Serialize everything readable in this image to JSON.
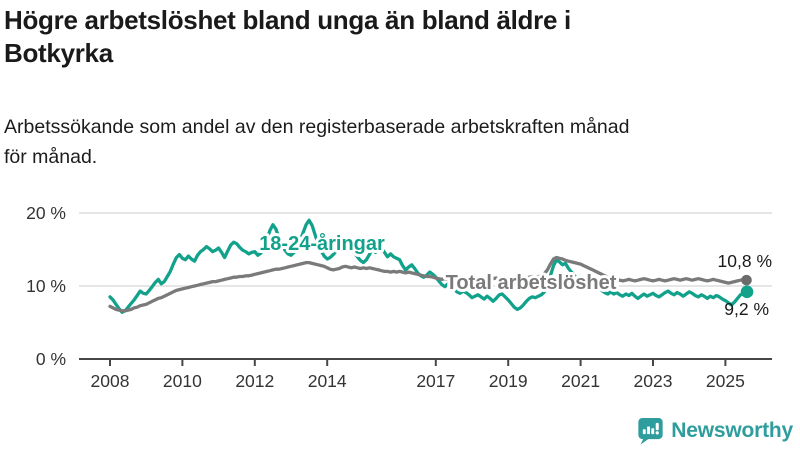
{
  "header": {
    "title_lines": [
      "Högre arbetslöshet bland unga än bland äldre i",
      "Botkyrka"
    ],
    "subtitle_lines": [
      "Arbetssökande som andel av den registerbaserade arbetskraften månad",
      "för månad."
    ]
  },
  "colors": {
    "youth_line": "#12a28b",
    "total_line": "#7a7a7b",
    "youth_dot": "#12a28b",
    "total_dot": "#6b6b6b",
    "grid": "#d8d8d8",
    "axis": "#474747",
    "tick_text": "#343434",
    "brand": "#2f9d9d"
  },
  "chart_data": {
    "type": "line",
    "title": "Högre arbetslöshet bland unga än bland äldre i Botkyrka",
    "subtitle": "Arbetssökande som andel av den registerbaserade arbetskraften månad för månad.",
    "unit": "%",
    "frequency": "monthly",
    "x_start": "2008-01",
    "x_end": "2025-08",
    "x_tick_years": [
      2008,
      2010,
      2012,
      2014,
      2017,
      2019,
      2021,
      2023,
      2025
    ],
    "y_ticks": [
      0,
      10,
      20
    ],
    "y_tick_labels": [
      "0 %",
      "10 %",
      "20 %"
    ],
    "ylim": [
      0,
      22
    ],
    "grid": true,
    "legend_position": "inline-labels",
    "series": [
      {
        "name": "18-24-åringar",
        "end_label": "9,2 %",
        "end_value": 9.2,
        "values": [
          8.5,
          8.1,
          7.5,
          6.9,
          6.4,
          6.6,
          7.1,
          7.6,
          8.1,
          8.7,
          9.3,
          9.0,
          8.9,
          9.4,
          9.9,
          10.5,
          10.9,
          10.3,
          10.6,
          11.3,
          12.0,
          13.0,
          13.9,
          14.3,
          13.8,
          13.6,
          14.1,
          13.7,
          13.4,
          14.2,
          14.7,
          15.0,
          15.4,
          15.1,
          14.7,
          14.9,
          15.2,
          14.6,
          13.9,
          14.8,
          15.6,
          16.0,
          15.8,
          15.3,
          14.9,
          14.7,
          14.4,
          14.6,
          14.7,
          14.2,
          14.5,
          15.3,
          16.4,
          17.6,
          18.4,
          17.8,
          16.6,
          15.6,
          14.9,
          14.4,
          14.2,
          14.6,
          15.2,
          16.2,
          17.3,
          18.4,
          19.0,
          18.3,
          17.0,
          15.8,
          14.8,
          14.1,
          13.7,
          13.9,
          14.3,
          14.8,
          15.4,
          16.0,
          16.4,
          15.9,
          15.1,
          14.5,
          14.0,
          13.5,
          13.2,
          13.6,
          14.3,
          15.1,
          14.6,
          15.0,
          15.2,
          14.6,
          14.0,
          14.4,
          14.0,
          13.8,
          13.6,
          12.8,
          12.2,
          12.6,
          12.9,
          12.4,
          11.8,
          11.4,
          11.2,
          11.5,
          11.9,
          11.6,
          11.2,
          10.7,
          10.2,
          9.9,
          10.3,
          10.0,
          9.6,
          9.2,
          9.0,
          9.3,
          9.1,
          8.8,
          8.4,
          8.6,
          8.8,
          8.5,
          8.2,
          8.6,
          8.3,
          7.9,
          8.3,
          8.8,
          8.9,
          8.5,
          8.1,
          7.6,
          7.1,
          6.8,
          7.0,
          7.4,
          7.9,
          8.3,
          8.5,
          8.4,
          8.6,
          8.8,
          9.2,
          10.1,
          11.4,
          12.8,
          13.6,
          13.3,
          12.9,
          13.1,
          12.4,
          11.9,
          11.4,
          10.9,
          10.5,
          10.2,
          9.9,
          10.1,
          9.8,
          9.6,
          9.8,
          9.4,
          9.1,
          8.9,
          9.2,
          8.9,
          9.1,
          8.8,
          8.6,
          8.9,
          8.7,
          9.0,
          8.6,
          8.3,
          8.6,
          8.9,
          8.6,
          8.8,
          9.0,
          8.7,
          8.5,
          8.8,
          9.1,
          9.3,
          9.0,
          8.8,
          9.1,
          8.9,
          8.6,
          8.9,
          9.2,
          9.0,
          8.7,
          8.5,
          8.8,
          8.6,
          8.3,
          8.6,
          8.4,
          8.7,
          8.5,
          8.2,
          8.0,
          7.7,
          7.4,
          7.8,
          8.3,
          8.8,
          9.0,
          9.2
        ]
      },
      {
        "name": "Total arbetslöshet",
        "end_label": "10,8 %",
        "end_value": 10.8,
        "values": [
          7.2,
          7.0,
          6.8,
          6.7,
          6.6,
          6.6,
          6.7,
          6.8,
          7.0,
          7.1,
          7.3,
          7.4,
          7.5,
          7.7,
          7.9,
          8.1,
          8.3,
          8.4,
          8.6,
          8.8,
          9.0,
          9.2,
          9.4,
          9.5,
          9.6,
          9.7,
          9.8,
          9.9,
          10.0,
          10.1,
          10.2,
          10.3,
          10.4,
          10.5,
          10.6,
          10.6,
          10.7,
          10.8,
          10.9,
          11.0,
          11.1,
          11.2,
          11.2,
          11.3,
          11.3,
          11.4,
          11.4,
          11.5,
          11.6,
          11.7,
          11.8,
          11.9,
          12.0,
          12.1,
          12.2,
          12.3,
          12.3,
          12.4,
          12.5,
          12.6,
          12.7,
          12.8,
          12.9,
          13.0,
          13.1,
          13.2,
          13.2,
          13.1,
          13.0,
          12.9,
          12.8,
          12.7,
          12.5,
          12.3,
          12.2,
          12.3,
          12.4,
          12.6,
          12.7,
          12.6,
          12.5,
          12.6,
          12.5,
          12.4,
          12.5,
          12.4,
          12.5,
          12.4,
          12.3,
          12.2,
          12.1,
          12.0,
          12.0,
          11.9,
          12.0,
          11.9,
          12.0,
          11.9,
          11.8,
          11.9,
          11.8,
          11.7,
          11.6,
          11.5,
          11.4,
          11.3,
          11.3,
          11.2,
          11.1,
          11.0,
          10.9,
          11.0,
          10.9,
          10.8,
          10.9,
          10.8,
          10.9,
          11.0,
          10.9,
          11.0,
          11.1,
          11.0,
          10.9,
          11.0,
          11.1,
          11.0,
          10.9,
          11.0,
          11.1,
          11.0,
          11.1,
          11.0,
          11.1,
          11.0,
          11.1,
          11.0,
          11.1,
          11.2,
          11.1,
          11.2,
          11.3,
          11.2,
          11.3,
          11.4,
          11.7,
          12.2,
          13.0,
          13.7,
          13.9,
          13.8,
          13.7,
          13.5,
          13.4,
          13.3,
          13.2,
          13.1,
          13.0,
          12.8,
          12.6,
          12.4,
          12.2,
          12.0,
          11.8,
          11.6,
          11.4,
          11.2,
          11.1,
          11.0,
          10.9,
          10.8,
          10.7,
          10.8,
          10.9,
          10.8,
          10.7,
          10.8,
          10.9,
          11.0,
          10.9,
          10.8,
          10.7,
          10.8,
          10.9,
          10.8,
          10.7,
          10.8,
          10.9,
          11.0,
          10.9,
          10.8,
          10.9,
          11.0,
          10.9,
          10.8,
          10.9,
          11.0,
          10.9,
          10.8,
          10.7,
          10.8,
          10.9,
          10.8,
          10.7,
          10.6,
          10.5,
          10.4,
          10.5,
          10.6,
          10.7,
          10.8,
          10.9,
          10.8
        ]
      }
    ]
  },
  "footer": {
    "brand": "Newsworthy",
    "logo_icon": "bar-chart-speech-bubble"
  }
}
